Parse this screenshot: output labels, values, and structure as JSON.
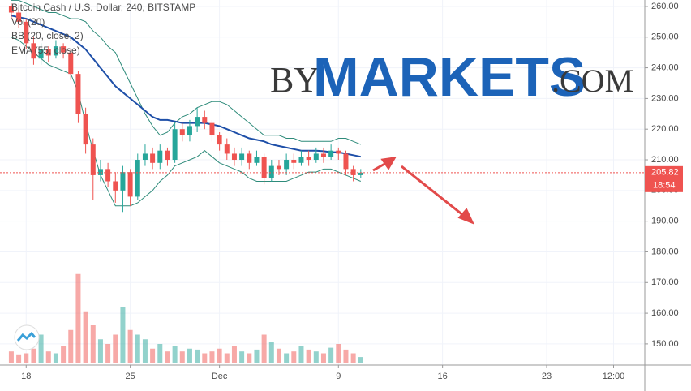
{
  "chart_data": {
    "type": "candlestick",
    "title": "Bitcoin Cash / U.S. Dollar, 240, BITSTAMP",
    "indicators": [
      "Vol (20)",
      "BB (20, close, 2)",
      "EMA (55, close)"
    ],
    "watermark": [
      "BY",
      "MARKETS",
      ".COM"
    ],
    "x": [
      -1,
      -0.5,
      0,
      0.5,
      1,
      1.5,
      2,
      2.5,
      3,
      3.5,
      4,
      4.5,
      5,
      5.5,
      6,
      6.5,
      7,
      7.5,
      8,
      8.5,
      9,
      9.5,
      10,
      10.5,
      11,
      11.5,
      12,
      12.5,
      13,
      13.5,
      14,
      14.5,
      15,
      15.5,
      16,
      16.5,
      17,
      17.5,
      18,
      18.5,
      19,
      19.5,
      20,
      20.5,
      21,
      21.5,
      22,
      22.5
    ],
    "open": [
      260,
      258,
      255,
      248,
      243,
      246,
      244,
      247,
      245,
      238,
      225,
      215,
      205,
      207,
      203,
      200,
      206,
      198,
      210,
      212,
      209,
      213,
      210,
      220,
      218,
      221,
      224,
      222,
      218,
      215,
      212,
      210,
      212,
      209,
      211,
      204,
      208,
      207,
      210,
      209,
      211,
      210,
      212,
      211,
      213,
      212,
      207,
      205
    ],
    "high": [
      261,
      259,
      256,
      250,
      248,
      247,
      249,
      248,
      246,
      239,
      227,
      217,
      210,
      209,
      206,
      208,
      207,
      212,
      215,
      214,
      215,
      214,
      222,
      222,
      223,
      227,
      226,
      223,
      219,
      217,
      214,
      214,
      213,
      213,
      212,
      210,
      210,
      212,
      212,
      213,
      213,
      214,
      214,
      215,
      214,
      213,
      208,
      207
    ],
    "low": [
      256,
      253,
      246,
      241,
      241,
      242,
      243,
      243,
      236,
      222,
      212,
      197,
      203,
      201,
      196,
      193,
      195,
      197,
      208,
      207,
      207,
      208,
      209,
      216,
      216,
      219,
      220,
      216,
      213,
      210,
      208,
      208,
      207,
      208,
      202,
      203,
      205,
      205,
      207,
      208,
      208,
      209,
      209,
      210,
      210,
      205,
      203,
      204
    ],
    "close": [
      258,
      255,
      248,
      243,
      246,
      244,
      247,
      245,
      238,
      225,
      215,
      205,
      207,
      203,
      200,
      206,
      198,
      210,
      212,
      209,
      213,
      210,
      220,
      218,
      221,
      224,
      222,
      218,
      215,
      212,
      210,
      212,
      209,
      211,
      204,
      208,
      207,
      210,
      209,
      211,
      210,
      212,
      211,
      213,
      212,
      207,
      205,
      205.82
    ],
    "volume": [
      12,
      8,
      10,
      15,
      30,
      12,
      10,
      18,
      35,
      95,
      55,
      40,
      25,
      20,
      30,
      60,
      35,
      30,
      25,
      15,
      20,
      12,
      18,
      12,
      15,
      14,
      10,
      12,
      15,
      10,
      18,
      12,
      10,
      14,
      30,
      22,
      15,
      10,
      12,
      18,
      14,
      12,
      10,
      16,
      20,
      14,
      10,
      6
    ],
    "volume_lim": [
      0,
      100
    ],
    "ema": [
      257,
      256.5,
      256,
      255,
      254,
      253,
      252,
      251,
      250,
      248,
      246,
      243,
      240,
      237,
      234,
      232,
      230,
      228,
      226,
      224,
      223,
      223,
      222.5,
      222,
      222,
      222,
      222,
      221.5,
      221,
      220,
      219,
      218,
      217,
      216.5,
      216,
      215,
      214.5,
      214,
      213.5,
      213,
      213,
      213,
      212.8,
      212.5,
      212.5,
      212,
      211.5,
      211
    ],
    "bb_upper": [
      262,
      262,
      261,
      260,
      259,
      258,
      258,
      257,
      256,
      256,
      255,
      252,
      250,
      247,
      245,
      240,
      235,
      230,
      225,
      221,
      218,
      219,
      222,
      224,
      225,
      227,
      228,
      229,
      229,
      228,
      226,
      224,
      222,
      220,
      218,
      218,
      218,
      217,
      217,
      216,
      216,
      216,
      216,
      216,
      217,
      217,
      216,
      215
    ],
    "bb_lower": [
      250,
      249,
      247,
      245,
      243,
      241,
      240,
      239,
      238,
      232,
      222,
      213,
      205,
      200,
      195,
      195,
      195,
      196,
      198,
      200,
      203,
      205,
      208,
      209,
      210,
      211,
      213,
      211,
      209,
      208,
      207,
      206,
      204,
      203,
      203,
      203,
      203,
      203,
      204,
      205,
      206,
      206,
      207,
      207,
      206,
      205,
      204,
      203
    ],
    "up_color": "#26a69a",
    "down_color": "#ef5350",
    "ema_color": "#1e4fa8",
    "bb_color": "#2e8b7a",
    "last_price": 205.82,
    "countdown": "18:54",
    "ylim": [
      143.1,
      262.1
    ],
    "yticks": [
      {
        "value": 150,
        "label": "150.00"
      },
      {
        "value": 160,
        "label": "160.00"
      },
      {
        "value": 170,
        "label": "170.00"
      },
      {
        "value": 180,
        "label": "180.00"
      },
      {
        "value": 190,
        "label": "190.00"
      },
      {
        "value": 200,
        "label": "200.00"
      },
      {
        "value": 210,
        "label": "210.00"
      },
      {
        "value": 220,
        "label": "220.00"
      },
      {
        "value": 230,
        "label": "230.00"
      },
      {
        "value": 240,
        "label": "240.00"
      },
      {
        "value": 250,
        "label": "250.00"
      },
      {
        "value": 260,
        "label": "260.00"
      }
    ],
    "xlim": [
      -1.76,
      41.6
    ],
    "xticks": [
      {
        "value": 0,
        "label": "18"
      },
      {
        "value": 7,
        "label": "25"
      },
      {
        "value": 13,
        "label": "Dec"
      },
      {
        "value": 21,
        "label": "9"
      },
      {
        "value": 28,
        "label": "16"
      },
      {
        "value": 35,
        "label": "23"
      },
      {
        "value": 39.5,
        "label": "12:00"
      }
    ],
    "grid": true
  }
}
